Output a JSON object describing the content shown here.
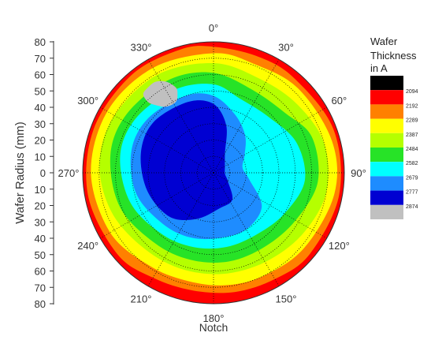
{
  "chart_data": {
    "type": "heatmap",
    "subtype": "polar-contour",
    "ylabel": "Wafer Radius (mm)",
    "xlabel": "Notch",
    "radius_range": [
      0,
      80
    ],
    "radius_ticks_top": [
      "80",
      "70",
      "60",
      "50",
      "40",
      "30",
      "20",
      "10",
      "0"
    ],
    "radius_ticks_bottom": [
      "10",
      "20",
      "30",
      "40",
      "50",
      "60",
      "70",
      "80"
    ],
    "angle_labels": [
      "0°",
      "30°",
      "60°",
      "90°",
      "120°",
      "150°",
      "180°",
      "210°",
      "240°",
      "270°",
      "300°",
      "330°"
    ],
    "legend": {
      "title_lines": [
        "Wafer",
        "Thickness",
        "in A"
      ],
      "placement": "right",
      "levels": [
        {
          "value": "",
          "color": "#000000"
        },
        {
          "value": "2094",
          "color": "#ff0000"
        },
        {
          "value": "2192",
          "color": "#ff8000"
        },
        {
          "value": "2289",
          "color": "#ffff00"
        },
        {
          "value": "2387",
          "color": "#b5ff00"
        },
        {
          "value": "2484",
          "color": "#27e327"
        },
        {
          "value": "2582",
          "color": "#00ffff"
        },
        {
          "value": "2679",
          "color": "#1e8cff"
        },
        {
          "value": "2777",
          "color": "#0000d2"
        },
        {
          "value": "2874",
          "color": "#c0c0c0"
        }
      ]
    },
    "regions_approx_radius": [
      {
        "level": "2094",
        "description": "outer red ring",
        "outer": 80
      },
      {
        "level": "2192",
        "description": "orange ring",
        "outer": 76
      },
      {
        "level": "2289",
        "description": "yellow ring",
        "outer": 72
      },
      {
        "level": "2387",
        "description": "yellow-green ring",
        "outer": 66
      },
      {
        "level": "2484",
        "description": "green ring",
        "outer": 60
      },
      {
        "level": "2582",
        "description": "cyan ring",
        "outer": 52
      },
      {
        "level": "2679",
        "description": "light blue region",
        "outer": 44
      },
      {
        "level": "2777",
        "description": "dark blue kidney-shaped region"
      },
      {
        "level": "2874",
        "description": "gray patch near 330°-340°, radius ~50 mm"
      }
    ],
    "grid": true
  },
  "colors": {
    "grid_dotted": "#000000",
    "axis": "#333333"
  }
}
